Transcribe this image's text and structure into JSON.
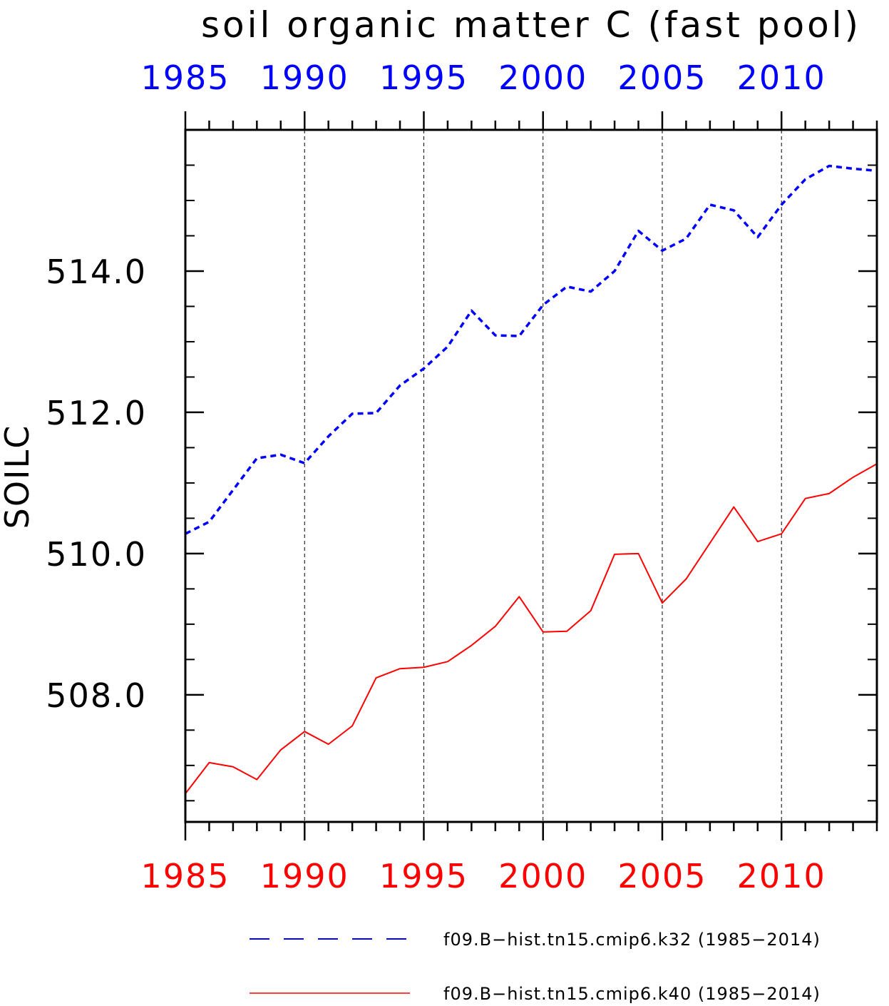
{
  "chart_data": {
    "type": "line",
    "title": "soil organic matter C (fast pool)",
    "ylabel": "SOILC",
    "xlim": [
      1985,
      2014
    ],
    "ylim": [
      506.2,
      516.0
    ],
    "y_ticks": [
      508.0,
      510.0,
      512.0,
      514.0
    ],
    "y_tick_labels": [
      "508.0",
      "510.0",
      "512.0",
      "514.0"
    ],
    "x_ticks_bottom": [
      "1985",
      "1990",
      "1995",
      "2000",
      "2005",
      "2010"
    ],
    "x_ticks_top": [
      "1985",
      "1990",
      "1995",
      "2000",
      "2005",
      "2010"
    ],
    "top_axis_color": "#0000ff",
    "bottom_axis_color": "#ff0000",
    "grid": "vertical dashed at major x ticks",
    "legend_position": "bottom",
    "x": [
      1985,
      1986,
      1987,
      1988,
      1989,
      1990,
      1991,
      1992,
      1993,
      1994,
      1995,
      1996,
      1997,
      1998,
      1999,
      2000,
      2001,
      2002,
      2003,
      2004,
      2005,
      2006,
      2007,
      2008,
      2009,
      2010,
      2011,
      2012,
      2013,
      2014
    ],
    "series": [
      {
        "name": "f09.B−hist.tn15.cmip6.k32 (1985−2014)",
        "color": "#0000ff",
        "dash": "dashed",
        "values": [
          510.28,
          510.45,
          510.9,
          511.35,
          511.4,
          511.28,
          511.66,
          511.98,
          511.99,
          512.38,
          512.62,
          512.93,
          513.44,
          513.09,
          513.08,
          513.52,
          513.78,
          513.71,
          514.0,
          514.57,
          514.29,
          514.46,
          514.94,
          514.86,
          514.48,
          514.94,
          515.3,
          515.49,
          515.45,
          515.42
        ]
      },
      {
        "name": "f09.B−hist.tn15.cmip6.k40 (1985−2014)",
        "color": "#ff0000",
        "dash": "solid",
        "values": [
          506.6,
          507.04,
          506.98,
          506.8,
          507.22,
          507.48,
          507.3,
          507.56,
          508.24,
          508.37,
          508.39,
          508.47,
          508.7,
          508.97,
          509.39,
          508.89,
          508.9,
          509.19,
          509.99,
          510.0,
          509.3,
          509.64,
          510.15,
          510.66,
          510.17,
          510.28,
          510.78,
          510.85,
          511.08,
          511.27
        ]
      }
    ]
  }
}
